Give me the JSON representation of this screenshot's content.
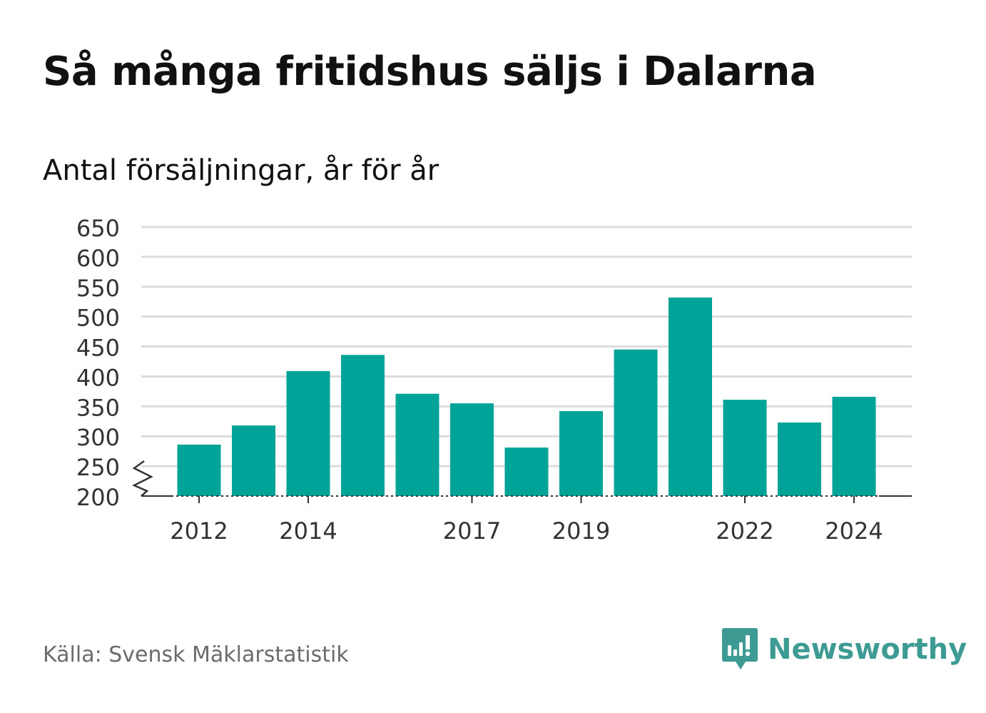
{
  "header": {
    "title": "Så många fritidshus säljs i Dalarna",
    "subtitle": "Antal försäljningar, år för år"
  },
  "footer": {
    "source": "Källa: Svensk Mäklarstatistik",
    "brand": "Newsworthy"
  },
  "colors": {
    "bar": "#00a398",
    "brand": "#3e9b93",
    "grid": "#dcdcdc",
    "axis": "#333333",
    "tick_text": "#333333"
  },
  "chart_data": {
    "type": "bar",
    "categories": [
      "2012",
      "2013",
      "2014",
      "2015",
      "2016",
      "2017",
      "2018",
      "2019",
      "2020",
      "2021",
      "2022",
      "2023",
      "2024"
    ],
    "values": [
      286,
      318,
      409,
      436,
      371,
      355,
      281,
      342,
      445,
      532,
      361,
      323,
      366
    ],
    "x_tick_labels": [
      "2012",
      "2014",
      "2017",
      "2019",
      "2022",
      "2024"
    ],
    "y_ticks": [
      200,
      250,
      300,
      350,
      400,
      450,
      500,
      550,
      600,
      650
    ],
    "ylim": [
      200,
      650
    ],
    "y_axis_break": true,
    "grid": true
  }
}
